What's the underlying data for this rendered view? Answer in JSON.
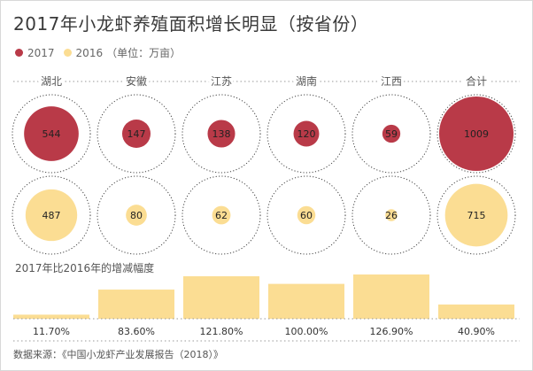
{
  "title": "2017年小龙虾养殖面积增长明显（按省份）",
  "legend": {
    "items": [
      {
        "label": "2017",
        "color": "#b93a48"
      },
      {
        "label": "2016",
        "color": "#fbdd93"
      }
    ],
    "unit": "（单位：万亩）"
  },
  "growth_title": "2017年比2016年的增减幅度",
  "source": "数据来源：《中国小龙虾产业发展报告（2018）》",
  "chart_data": [
    {
      "type": "bubble",
      "categories": [
        "湖北",
        "安徽",
        "江苏",
        "湖南",
        "江西",
        "合计"
      ],
      "series": [
        {
          "name": "2017",
          "values": [
            544,
            147,
            138,
            120,
            59,
            1009
          ],
          "color": "#b93a48"
        },
        {
          "name": "2016",
          "values": [
            487,
            80,
            62,
            60,
            26,
            715
          ],
          "color": "#fbdd93"
        }
      ],
      "unit": "万亩"
    },
    {
      "type": "bar",
      "title": "2017年比2016年的增减幅度",
      "categories": [
        "湖北",
        "安徽",
        "江苏",
        "湖南",
        "江西",
        "合计"
      ],
      "values": [
        11.7,
        83.6,
        121.8,
        100.0,
        126.9,
        40.9
      ],
      "labels": [
        "11.70%",
        "83.60%",
        "121.80%",
        "100.00%",
        "126.90%",
        "40.90%"
      ],
      "color": "#fbdd93"
    }
  ]
}
